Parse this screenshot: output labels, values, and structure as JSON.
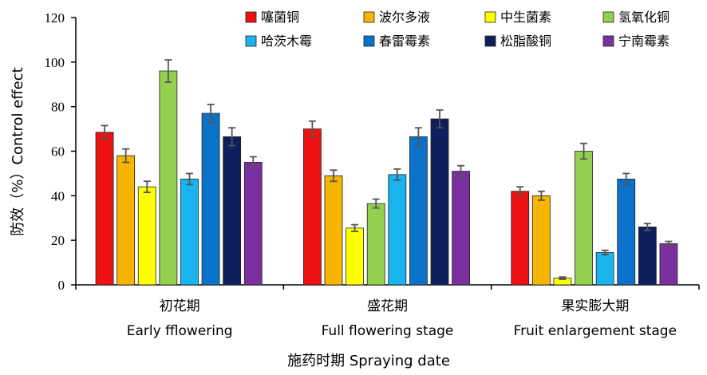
{
  "chart_data": {
    "type": "bar",
    "categories": [
      "初花期",
      "盛花期",
      "果实膨大期"
    ],
    "categories_en": [
      "Early fflowering",
      "Full flowering stage",
      "Fruit enlargement stage"
    ],
    "xlabel": "施药时期 Spraying date",
    "ylabel": "防效（%）Control effect",
    "ylim": [
      0,
      120
    ],
    "yticks": [
      0,
      20,
      40,
      60,
      80,
      100,
      120
    ],
    "grid": false,
    "legend_position": "top-right",
    "error_bars": true,
    "series": [
      {
        "name": "噻菌铜",
        "color": "#ee1111",
        "values": [
          68.5,
          70,
          42
        ],
        "errors": [
          3,
          3.5,
          2
        ]
      },
      {
        "name": "波尔多液",
        "color": "#f7b500",
        "values": [
          58,
          49,
          40
        ],
        "errors": [
          3,
          2.5,
          2
        ]
      },
      {
        "name": "中生菌素",
        "color": "#ffff00",
        "values": [
          44,
          25.5,
          3
        ],
        "errors": [
          2.5,
          1.5,
          0.5
        ]
      },
      {
        "name": "氢氧化铜",
        "color": "#92d050",
        "values": [
          96,
          36.5,
          60
        ],
        "errors": [
          5,
          2,
          3.5
        ]
      },
      {
        "name": "哈茨木霉",
        "color": "#19b4ee",
        "values": [
          47.5,
          49.5,
          14.5
        ],
        "errors": [
          2.5,
          2.5,
          1
        ]
      },
      {
        "name": "春雷霉素",
        "color": "#0a72c8",
        "values": [
          77,
          66.5,
          47.5
        ],
        "errors": [
          4,
          4,
          2.5
        ]
      },
      {
        "name": "松脂酸铜",
        "color": "#0d1f5c",
        "values": [
          66.5,
          74.5,
          26
        ],
        "errors": [
          4,
          4,
          1.5
        ]
      },
      {
        "name": "宁南霉素",
        "color": "#7a30a0",
        "values": [
          55,
          51,
          18.5
        ],
        "errors": [
          2.5,
          2.5,
          1
        ]
      }
    ]
  }
}
